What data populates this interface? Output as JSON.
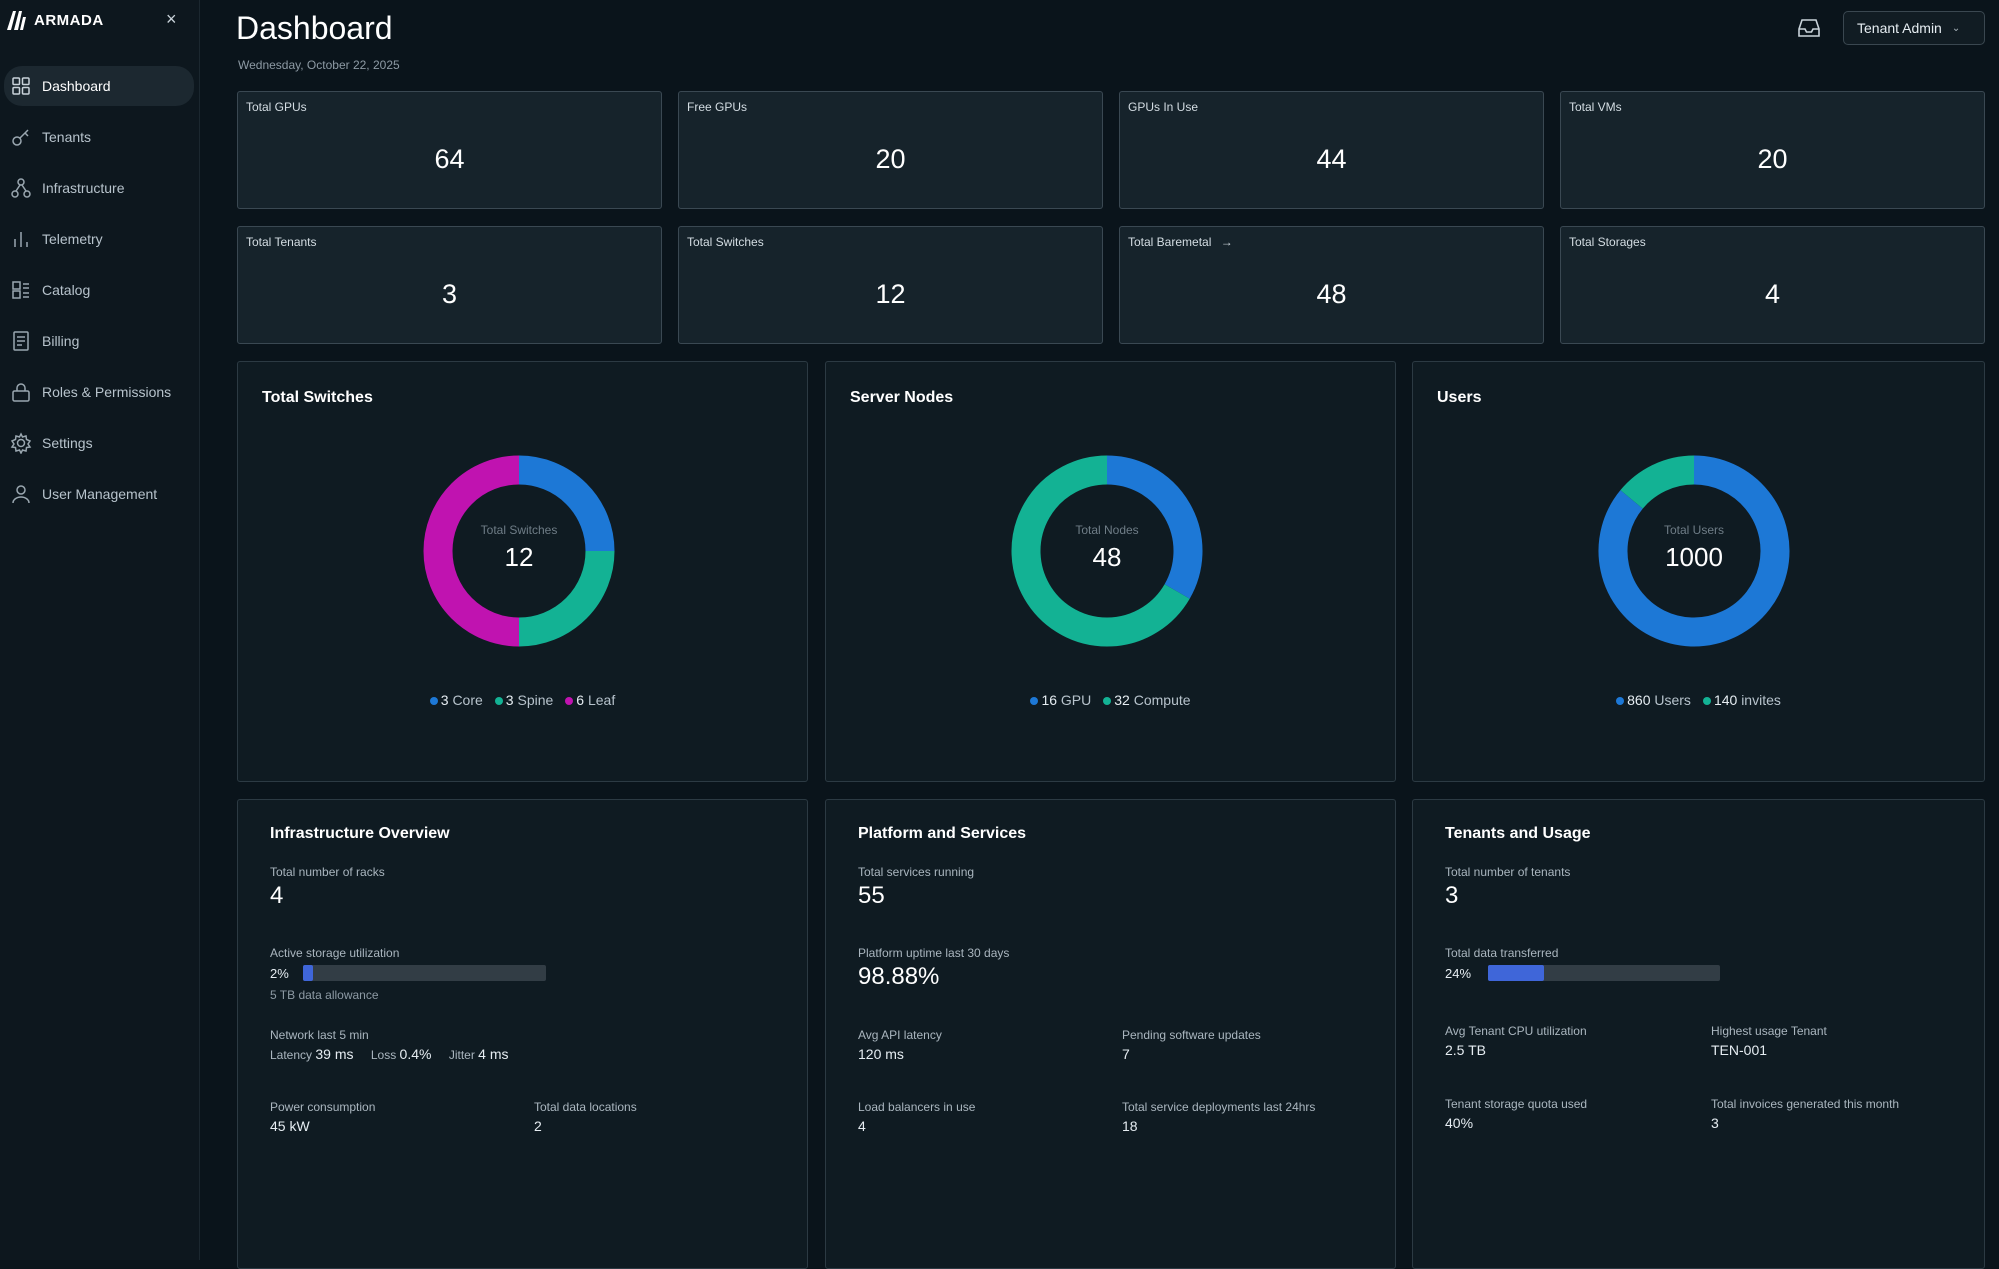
{
  "brand": {
    "name": "ARMADA"
  },
  "sidebar": {
    "items": [
      {
        "label": "Dashboard",
        "active": true
      },
      {
        "label": "Tenants"
      },
      {
        "label": "Infrastructure"
      },
      {
        "label": "Telemetry"
      },
      {
        "label": "Catalog"
      },
      {
        "label": "Billing"
      },
      {
        "label": "Roles & Permissions"
      },
      {
        "label": "Settings"
      },
      {
        "label": "User Management"
      }
    ]
  },
  "header": {
    "title": "Dashboard",
    "date": "Wednesday, October 22, 2025",
    "user_menu": "Tenant Admin"
  },
  "stats": [
    {
      "label": "Total GPUs",
      "value": "64"
    },
    {
      "label": "Free GPUs",
      "value": "20"
    },
    {
      "label": "GPUs In Use",
      "value": "44"
    },
    {
      "label": "Total VMs",
      "value": "20"
    },
    {
      "label": "Total Tenants",
      "value": "3"
    },
    {
      "label": "Total Switches",
      "value": "12"
    },
    {
      "label": "Total Baremetal",
      "value": "48"
    },
    {
      "label": "Total Storages",
      "value": "4"
    }
  ],
  "donuts": [
    {
      "title": "Total Switches",
      "center_label": "Total Switches",
      "center_value": "12",
      "segments": [
        {
          "num": "3",
          "label": "Core",
          "value": 3,
          "color": "#1d78d6"
        },
        {
          "num": "3",
          "label": "Spine",
          "value": 3,
          "color": "#13b294"
        },
        {
          "num": "6",
          "label": "Leaf",
          "value": 6,
          "color": "#c013b0"
        }
      ]
    },
    {
      "title": "Server Nodes",
      "center_label": "Total Nodes",
      "center_value": "48",
      "segments": [
        {
          "num": "16",
          "label": "GPU",
          "value": 16,
          "color": "#1d78d6"
        },
        {
          "num": "32",
          "label": "Compute",
          "value": 32,
          "color": "#13b294"
        }
      ]
    },
    {
      "title": "Users",
      "center_label": "Total Users",
      "center_value": "1000",
      "segments": [
        {
          "num": "860",
          "label": "Users",
          "value": 860,
          "color": "#1d78d6"
        },
        {
          "num": "140",
          "label": "invites",
          "value": 140,
          "color": "#13b294"
        }
      ]
    }
  ],
  "infrastructure": {
    "title": "Infrastructure Overview",
    "racks_label": "Total number of racks",
    "racks_value": "4",
    "storage_label": "Active storage utilization",
    "storage_pct": "2%",
    "storage_fraction": 0.02,
    "storage_note": "5 TB data allowance",
    "network_label": "Network last 5 min",
    "latency_label": "Latency",
    "latency_value": "39 ms",
    "loss_label": "Loss",
    "loss_value": "0.4%",
    "jitter_label": "Jitter",
    "jitter_value": "4 ms",
    "power_label": "Power consumption",
    "power_value": "45 kW",
    "locations_label": "Total data locations",
    "locations_value": "2"
  },
  "platform": {
    "title": "Platform and Services",
    "services_label": "Total services running",
    "services_value": "55",
    "uptime_label": "Platform uptime last 30 days",
    "uptime_value": "98.88%",
    "latency_label": "Avg API latency",
    "latency_value": "120 ms",
    "updates_label": "Pending software updates",
    "updates_value": "7",
    "lb_label": "Load balancers in use",
    "lb_value": "4",
    "deploy_label": "Total service deployments last 24hrs",
    "deploy_value": "18"
  },
  "tenants": {
    "title": "Tenants and Usage",
    "count_label": "Total number of tenants",
    "count_value": "3",
    "transfer_label": "Total data transferred",
    "transfer_pct": "24%",
    "transfer_fraction": 0.24,
    "cpu_label": "Avg Tenant CPU utilization",
    "cpu_value": "2.5 TB",
    "highest_label": "Highest usage Tenant",
    "highest_value": "TEN-001",
    "quota_label": "Tenant storage quota used",
    "quota_value": "40%",
    "invoices_label": "Total invoices generated this month",
    "invoices_value": "3"
  }
}
